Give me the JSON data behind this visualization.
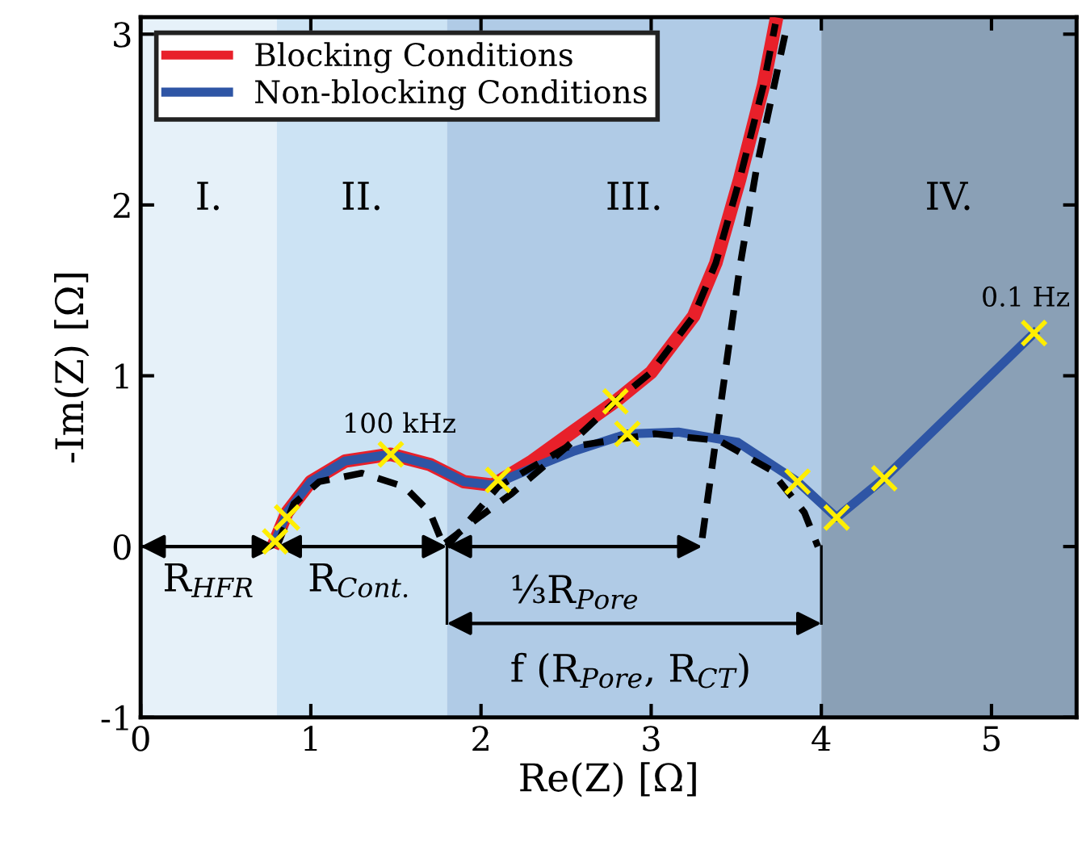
{
  "chart_data": {
    "type": "line",
    "xlabel": "Re(Z) [Ω]",
    "ylabel": "-Im(Z) [Ω]",
    "xlim": [
      0,
      5.5
    ],
    "ylim": [
      -1,
      3.1
    ],
    "xticks": [
      0,
      1,
      2,
      3,
      4,
      5
    ],
    "yticks": [
      -1,
      0,
      1,
      2,
      3
    ],
    "grid": false,
    "legend": "top left",
    "bands": [
      {
        "axis": "x",
        "from": 0,
        "to": 0.8,
        "label": "I.",
        "color": "#e6f1f9"
      },
      {
        "axis": "x",
        "from": 0.8,
        "to": 1.8,
        "label": "II.",
        "color": "#cce3f4"
      },
      {
        "axis": "x",
        "from": 1.8,
        "to": 4.0,
        "label": "III.",
        "color": "#b0cbe6"
      },
      {
        "axis": "x",
        "from": 4.0,
        "to": 5.5,
        "label": "IV.",
        "color": "#8aa0b6"
      }
    ],
    "series": [
      {
        "name": "Blocking Conditions",
        "color": "#e8202a",
        "x": [
          0.79,
          0.86,
          1.0,
          1.2,
          1.47,
          1.7,
          1.9,
          2.07,
          2.3,
          2.55,
          2.79,
          3.0,
          3.25,
          3.38,
          3.52,
          3.66,
          3.73
        ],
        "values": [
          0.03,
          0.2,
          0.38,
          0.5,
          0.54,
          0.48,
          0.38,
          0.36,
          0.5,
          0.68,
          0.85,
          1.02,
          1.35,
          1.66,
          2.15,
          2.7,
          3.06
        ]
      },
      {
        "name": "Non-blocking Conditions",
        "color": "#2e55a5",
        "x": [
          0.79,
          0.86,
          1.0,
          1.2,
          1.47,
          1.7,
          1.9,
          2.07,
          2.3,
          2.55,
          2.86,
          3.16,
          3.51,
          3.86,
          4.09,
          4.37,
          5.25
        ],
        "values": [
          0.03,
          0.2,
          0.38,
          0.5,
          0.54,
          0.48,
          0.38,
          0.36,
          0.46,
          0.56,
          0.66,
          0.67,
          0.61,
          0.38,
          0.17,
          0.4,
          1.25
        ]
      },
      {
        "type": "line",
        "color": "#000000",
        "line_style": "dashed",
        "x": [
          0.8,
          0.9,
          1.05,
          1.3,
          1.55,
          1.7,
          1.77
        ],
        "values": [
          0.0,
          0.25,
          0.38,
          0.43,
          0.35,
          0.2,
          0.03
        ]
      },
      {
        "type": "line",
        "color": "#000000",
        "line_style": "dashed",
        "x": [
          1.79,
          2.0,
          2.18,
          2.5,
          2.79,
          3.0,
          3.25,
          3.38,
          3.52,
          3.66,
          3.73
        ],
        "values": [
          0.02,
          0.18,
          0.31,
          0.58,
          0.85,
          1.02,
          1.35,
          1.66,
          2.15,
          2.7,
          3.06
        ]
      },
      {
        "type": "line",
        "color": "#000000",
        "line_style": "dashed",
        "x": [
          1.8,
          2.1,
          2.5,
          3.02,
          3.4,
          3.7,
          3.9,
          3.98
        ],
        "values": [
          0.0,
          0.35,
          0.58,
          0.66,
          0.62,
          0.45,
          0.2,
          0.0
        ]
      },
      {
        "type": "line",
        "color": "#000000",
        "line_style": "dashed",
        "x": [
          3.3,
          3.52,
          3.62,
          3.8
        ],
        "values": [
          0.05,
          1.63,
          2.22,
          3.06
        ]
      },
      {
        "type": "scatter",
        "color": "#ffee00",
        "marker": "cross",
        "x": [
          0.79,
          0.86,
          1.47,
          2.1,
          2.79,
          2.86,
          3.86,
          4.09,
          4.37,
          5.25
        ],
        "values": [
          0.03,
          0.17,
          0.54,
          0.39,
          0.85,
          0.66,
          0.38,
          0.17,
          0.4,
          1.25
        ]
      }
    ],
    "annotations": [
      "100 kHz",
      "0.1 Hz",
      {
        "text": "R$_{HFR}$",
        "x": 0.8,
        "y": 0
      },
      {
        "text": "R$_{Cont.}$",
        "x": 1.8,
        "y": 0
      },
      "⅓R$_{Pore}$",
      "f (R$_{Pore}$, R$_{CT}$)"
    ]
  }
}
